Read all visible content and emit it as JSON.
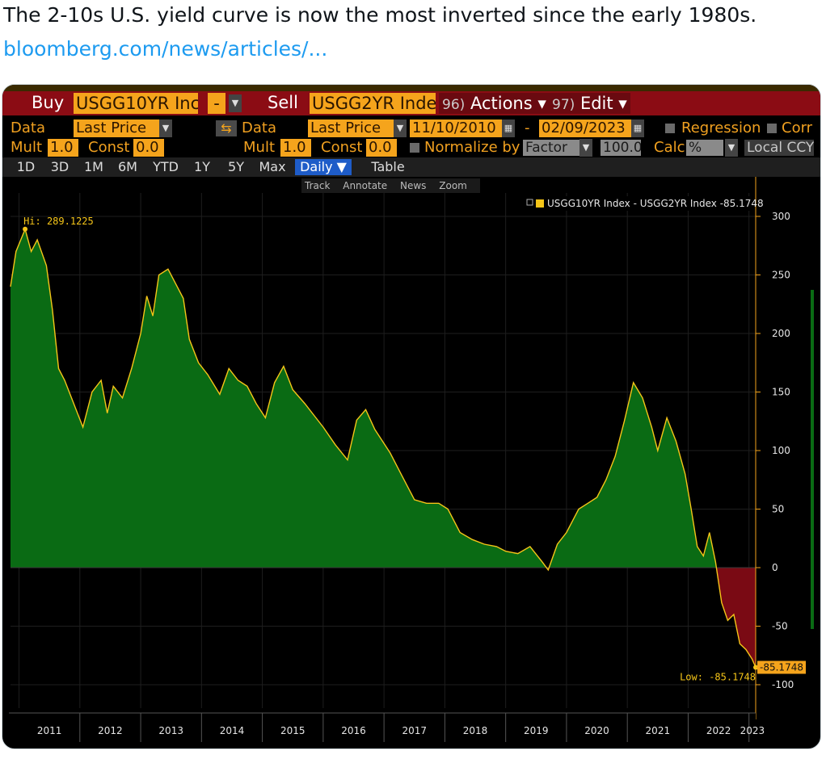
{
  "tweet": {
    "text": "The 2-10s U.S. yield curve is now the most inverted since the early 1980s.",
    "link": "bloomberg.com/news/articles/..."
  },
  "toolbar": {
    "buy_label": "Buy",
    "buy_ticker": "USGG10YR Inc",
    "operator": "-",
    "sell_label": "Sell",
    "sell_ticker": "USGG2YR Inde",
    "actions_num": "96)",
    "actions_label": "Actions ▾",
    "edit_num": "97)",
    "edit_label": "Edit ▾"
  },
  "row2": {
    "data_label": "Data",
    "data_value": "Last Price",
    "data2_label": "Data",
    "data2_value": "Last Price",
    "start_date": "11/10/2010",
    "dash": "-",
    "end_date": "02/09/2023",
    "regression_label": "Regression",
    "corr_label": "Corr"
  },
  "row3": {
    "mult_label": "Mult",
    "mult_value": "1.0",
    "const_label": "Const",
    "const_value": "0.0",
    "mult2_label": "Mult",
    "mult2_value": "1.0",
    "const2_label": "Const",
    "const2_value": "0.0",
    "normalize_label": "Normalize by",
    "factor_label": "Factor",
    "factor_value": "100.0",
    "calc_label": "Calc",
    "calc_value": "%",
    "currency_label": "Local CCY"
  },
  "timeframes": [
    "1D",
    "3D",
    "1M",
    "6M",
    "YTD",
    "1Y",
    "5Y",
    "Max"
  ],
  "frequency": "Daily ▼",
  "table_label": "Table",
  "minitools": [
    "Track",
    "Annotate",
    "News",
    "Zoom"
  ],
  "colors": {
    "positive_fill": "#0a6b14",
    "negative_fill": "#7a0a14",
    "line": "#f5c518",
    "accent": "#f5a41c",
    "toolbar_red": "#8b0c14"
  },
  "chart_data": {
    "type": "area",
    "title": "",
    "legend": "USGG10YR Index - USGG2YR Index  -85.1748",
    "legend_position": "top-right",
    "x_unit": "year",
    "xlim": [
      2010.86,
      2023.11
    ],
    "ylim": [
      -120,
      320
    ],
    "y_ticks": [
      300,
      250,
      200,
      150,
      100,
      50,
      0,
      -50,
      -100
    ],
    "x_tick_labels": [
      "2011",
      "2012",
      "2013",
      "2014",
      "2015",
      "2016",
      "2017",
      "2018",
      "2019",
      "2020",
      "2021",
      "2022",
      "2023"
    ],
    "annotations": {
      "high_label": "Hi: 289.1225",
      "high": {
        "x": 2011.1,
        "y": 289.1225
      },
      "low_label": "Low: -85.1748",
      "low": {
        "x": 2023.11,
        "y": -85.1748
      },
      "last_value_label": "-85.1748"
    },
    "series": [
      {
        "name": "USGG10YR Index - USGG2YR Index",
        "x": [
          2010.86,
          2010.95,
          2011.1,
          2011.2,
          2011.3,
          2011.45,
          2011.55,
          2011.65,
          2011.75,
          2011.9,
          2012.05,
          2012.2,
          2012.35,
          2012.45,
          2012.55,
          2012.7,
          2012.85,
          2013.0,
          2013.1,
          2013.2,
          2013.3,
          2013.45,
          2013.55,
          2013.7,
          2013.8,
          2013.95,
          2014.1,
          2014.3,
          2014.45,
          2014.6,
          2014.75,
          2014.9,
          2015.05,
          2015.2,
          2015.35,
          2015.5,
          2015.7,
          2015.85,
          2016.0,
          2016.2,
          2016.4,
          2016.55,
          2016.7,
          2016.85,
          2016.95,
          2017.1,
          2017.3,
          2017.5,
          2017.7,
          2017.9,
          2018.05,
          2018.25,
          2018.45,
          2018.65,
          2018.85,
          2019.0,
          2019.2,
          2019.4,
          2019.6,
          2019.7,
          2019.85,
          2020.0,
          2020.2,
          2020.35,
          2020.5,
          2020.65,
          2020.8,
          2020.95,
          2021.1,
          2021.25,
          2021.4,
          2021.5,
          2021.65,
          2021.8,
          2021.95,
          2022.05,
          2022.15,
          2022.25,
          2022.35,
          2022.45,
          2022.55,
          2022.65,
          2022.75,
          2022.85,
          2022.95,
          2023.05,
          2023.11
        ],
        "y": [
          240,
          270,
          289,
          270,
          280,
          258,
          220,
          170,
          160,
          140,
          120,
          150,
          160,
          132,
          155,
          145,
          170,
          200,
          232,
          215,
          250,
          255,
          245,
          230,
          195,
          175,
          165,
          148,
          170,
          160,
          155,
          140,
          128,
          158,
          172,
          152,
          140,
          130,
          120,
          105,
          92,
          126,
          135,
          118,
          110,
          98,
          78,
          58,
          55,
          55,
          50,
          30,
          24,
          20,
          18,
          14,
          12,
          18,
          5,
          -2,
          20,
          30,
          50,
          55,
          60,
          75,
          95,
          125,
          158,
          145,
          120,
          100,
          128,
          108,
          80,
          50,
          18,
          10,
          30,
          5,
          -30,
          -45,
          -40,
          -65,
          -70,
          -78,
          -85.1748
        ]
      }
    ]
  }
}
